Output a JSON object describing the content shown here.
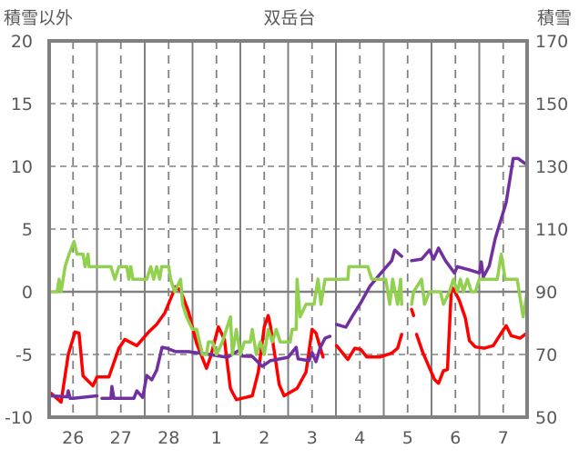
{
  "chart_data": {
    "type": "line",
    "title": "双岳台",
    "ylabel_left": "積雪以外",
    "ylabel_right": "積雪",
    "x_unit": "hours since 26th 00:00",
    "xlim": [
      0,
      240
    ],
    "ylim_left": [
      -10,
      20
    ],
    "ylim_right": [
      50,
      170
    ],
    "yticks_left": [
      "20",
      "15",
      "10",
      "5",
      "0",
      "-5",
      "-10"
    ],
    "yticks_right": [
      "170",
      "150",
      "130",
      "110",
      "90",
      "70",
      "50"
    ],
    "xtick_labels": [
      "26",
      "27",
      "28",
      "1",
      "2",
      "3",
      "4",
      "5",
      "6",
      "7"
    ],
    "grid": "horizontal dashed every 5 units with solid line at 0; vertical solid at midnight, dashed at noon",
    "series": [
      {
        "name": "red",
        "axis": "left",
        "color": "#ff0000",
        "points": [
          [
            1,
            -8.1
          ],
          [
            6,
            -8.8
          ],
          [
            9.6,
            -5
          ],
          [
            13,
            -3.2
          ],
          [
            15,
            -3.3
          ],
          [
            17,
            -6.7
          ],
          [
            22,
            -7.5
          ],
          [
            24,
            -6.8
          ],
          [
            30,
            -6.8
          ],
          [
            35,
            -4.5
          ],
          [
            38,
            -3.8
          ],
          [
            44,
            -4.3
          ],
          [
            50,
            -3.2
          ],
          [
            54,
            -2.6
          ],
          [
            58,
            -1.7
          ],
          [
            63.5,
            0.4
          ],
          [
            66,
            0.1
          ],
          [
            70,
            -1.6
          ],
          [
            74,
            -4.1
          ],
          [
            79,
            -6.1
          ],
          [
            81,
            -5.2
          ],
          [
            85,
            -2.8
          ],
          [
            88,
            -3.8
          ],
          [
            91,
            -7.7
          ],
          [
            94,
            -8.6
          ],
          [
            102,
            -8.3
          ],
          [
            105,
            -6.4
          ],
          [
            108,
            -2.8
          ],
          [
            110,
            -1.9
          ],
          [
            111,
            -2.6
          ],
          [
            115.5,
            -7.4
          ],
          [
            118,
            -8.3
          ],
          [
            124.5,
            -7.7
          ],
          [
            129,
            -6.4
          ],
          [
            132,
            -3.0
          ],
          [
            134,
            -3.3
          ],
          [
            137.5,
            -5.2
          ],
          null,
          [
            144.3,
            -4.3
          ],
          [
            150,
            -5.4
          ],
          [
            153.5,
            -4.5
          ],
          [
            156.5,
            -4.6
          ],
          [
            159.5,
            -5.2
          ],
          [
            166,
            -5.2
          ],
          [
            172,
            -4.9
          ],
          [
            175,
            -4.5
          ],
          [
            177,
            -3.4
          ],
          null,
          [
            182,
            -1.4
          ],
          [
            183,
            -1.9
          ],
          null,
          [
            184.5,
            -3.4
          ],
          [
            187.5,
            -4.8
          ],
          [
            193.5,
            -7.0
          ],
          [
            195.5,
            -7.3
          ],
          [
            198,
            -6.3
          ],
          [
            200,
            -6.2
          ],
          [
            202,
            0.4
          ],
          [
            203.5,
            0.1
          ],
          [
            206,
            -0.7
          ],
          [
            209,
            -2.1
          ],
          [
            211,
            -3.9
          ],
          [
            214,
            -4.4
          ],
          [
            218.5,
            -4.5
          ],
          [
            223,
            -4.3
          ],
          [
            227,
            -3.3
          ],
          [
            229.5,
            -2.7
          ],
          [
            232,
            -3.5
          ],
          [
            236.5,
            -3.7
          ],
          [
            239,
            -3.4
          ]
        ]
      },
      {
        "name": "積雪",
        "axis": "right",
        "color": "#7030a0",
        "points": [
          [
            1,
            56.8
          ],
          [
            9,
            56.5
          ],
          [
            9.6,
            58.4
          ],
          [
            10.5,
            56
          ],
          [
            12,
            56
          ],
          [
            24,
            56.8
          ],
          null,
          [
            26.5,
            56
          ],
          [
            31,
            56
          ],
          [
            31.5,
            59.8
          ],
          [
            32.5,
            56
          ],
          [
            42.5,
            56
          ],
          [
            44,
            58.4
          ],
          [
            47,
            56.3
          ],
          [
            49,
            63.3
          ],
          [
            51.5,
            61.9
          ],
          [
            54,
            65
          ],
          [
            56.7,
            72.3
          ],
          [
            59,
            72
          ],
          [
            63.5,
            70.9
          ],
          [
            70,
            70.9
          ],
          [
            80.5,
            70
          ],
          [
            89.5,
            69.1
          ],
          [
            95.5,
            71.4
          ],
          [
            97,
            69.5
          ],
          [
            102,
            69.4
          ],
          [
            107,
            66.2
          ],
          [
            111,
            68
          ],
          [
            120,
            69.1
          ],
          [
            124,
            72.3
          ],
          [
            125,
            68.6
          ],
          [
            130.5,
            68
          ],
          [
            132,
            70.6
          ],
          [
            134,
            67.7
          ],
          [
            136,
            72
          ],
          [
            138.5,
            75.2
          ],
          [
            141,
            75.8
          ],
          null,
          [
            144.3,
            79.6
          ],
          [
            149,
            78.7
          ],
          [
            152.5,
            82.5
          ],
          [
            156.5,
            86.5
          ],
          [
            161,
            91.7
          ],
          [
            166,
            95.5
          ],
          [
            172,
            99.9
          ],
          [
            173.5,
            103.3
          ],
          [
            177,
            101.3
          ],
          null,
          [
            182,
            99.9
          ],
          [
            187,
            100.4
          ],
          [
            191,
            103.3
          ],
          [
            193,
            100.4
          ],
          [
            195.5,
            103.9
          ],
          [
            199,
            99.9
          ],
          [
            203.5,
            96
          ],
          [
            205,
            98
          ],
          [
            211,
            97
          ],
          [
            216,
            96
          ],
          [
            217,
            99.5
          ],
          [
            218,
            94.7
          ],
          [
            221,
            98.2
          ],
          [
            224,
            107
          ],
          [
            229.5,
            118.5
          ],
          [
            233,
            132.5
          ],
          [
            235.5,
            132.5
          ],
          [
            239,
            130.9
          ]
        ]
      },
      {
        "name": "green",
        "axis": "left",
        "color": "#92d050",
        "points": [
          [
            1,
            0
          ],
          [
            4,
            0
          ],
          [
            5,
            1
          ],
          [
            6,
            0
          ],
          [
            8,
            2
          ],
          [
            10,
            3
          ],
          [
            12.5,
            4
          ],
          [
            14,
            3
          ],
          [
            17,
            3
          ],
          [
            18,
            2
          ],
          [
            19.5,
            3
          ],
          [
            20,
            2
          ],
          [
            31,
            2
          ],
          [
            33,
            1
          ],
          [
            35,
            2
          ],
          [
            39,
            2
          ],
          [
            40,
            1
          ],
          [
            41,
            2
          ],
          [
            42,
            1
          ],
          [
            49,
            1
          ],
          [
            51,
            2
          ],
          [
            52.5,
            1
          ],
          [
            54,
            2
          ],
          [
            55.5,
            1
          ],
          [
            56.5,
            2
          ],
          [
            60,
            2
          ],
          [
            61,
            1
          ],
          [
            63,
            0
          ],
          [
            66,
            1
          ],
          [
            67,
            -1
          ],
          [
            69,
            -2
          ],
          [
            72,
            -3
          ],
          [
            74,
            -3
          ],
          [
            77,
            -5
          ],
          [
            79,
            -5
          ],
          [
            80,
            -4
          ],
          [
            82,
            -4
          ],
          [
            84,
            -5
          ],
          [
            87,
            -4
          ],
          [
            91,
            -2
          ],
          [
            92,
            -5
          ],
          [
            94,
            -3
          ],
          [
            96,
            -5
          ],
          [
            98,
            -4
          ],
          [
            101,
            -4
          ],
          [
            102,
            -3
          ],
          [
            104,
            -5
          ],
          [
            106,
            -4
          ],
          [
            108,
            -5
          ],
          [
            110,
            -3
          ],
          [
            112,
            -4
          ],
          [
            114,
            -3
          ],
          [
            116,
            -4
          ],
          [
            121,
            -4
          ],
          [
            122,
            -3
          ],
          [
            124,
            -3
          ],
          [
            124.5,
            1
          ],
          [
            126,
            -2
          ],
          [
            129,
            -1
          ],
          [
            133,
            -1
          ],
          [
            134,
            0
          ],
          [
            135,
            1
          ],
          [
            136.5,
            -1
          ],
          [
            138.5,
            1
          ],
          [
            150,
            1
          ],
          [
            150.5,
            2
          ],
          [
            160,
            2
          ],
          [
            162,
            1
          ],
          [
            169,
            1
          ],
          [
            171,
            -1
          ],
          [
            172.5,
            1
          ],
          [
            175,
            -1
          ],
          [
            176.5,
            1
          ],
          [
            177,
            -1
          ],
          null,
          [
            182,
            -1
          ],
          [
            183,
            0
          ],
          [
            187,
            1
          ],
          [
            188.5,
            -1
          ],
          [
            191,
            0
          ],
          [
            196.5,
            0
          ],
          [
            198,
            -1
          ],
          [
            201,
            0
          ],
          [
            203,
            1
          ],
          [
            205,
            0
          ],
          [
            206.5,
            1
          ],
          [
            208,
            0
          ],
          [
            210,
            1
          ],
          [
            212,
            0
          ],
          [
            214,
            0
          ],
          [
            216,
            1
          ],
          [
            225,
            1
          ],
          [
            227,
            3
          ],
          [
            229,
            1
          ],
          [
            235,
            1
          ],
          [
            236,
            0
          ],
          [
            238,
            -2
          ],
          [
            240,
            0
          ]
        ]
      }
    ]
  }
}
